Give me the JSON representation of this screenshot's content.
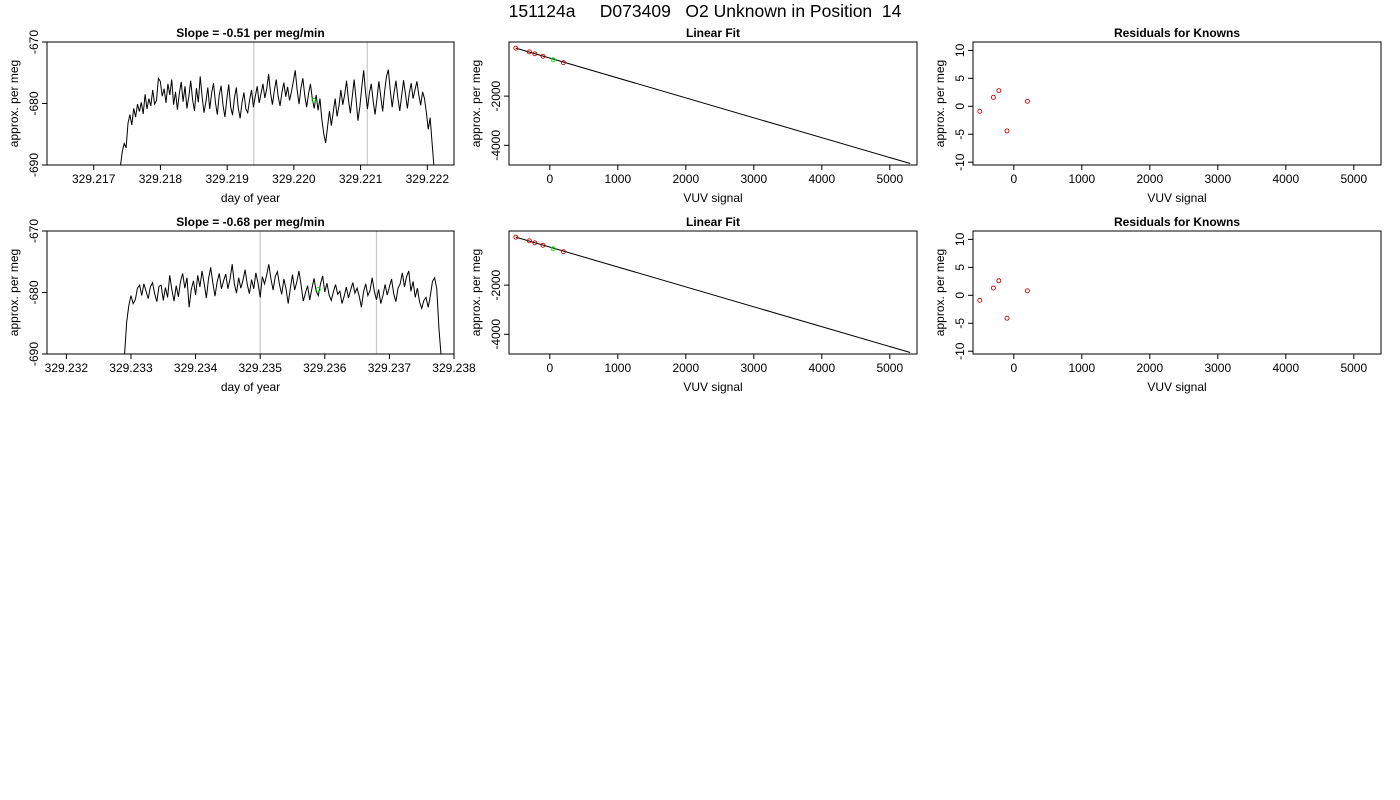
{
  "header": {
    "title": "151124a     D073409   O2 Unknown in Position  14"
  },
  "colors": {
    "trace": "#000000",
    "frame": "#000000",
    "marker_line": "#c8c8c8",
    "known_point": "#cc0000",
    "unknown_point": "#00ee00"
  },
  "chart_data": [
    {
      "type": "line",
      "title": "Slope =  -0.51  per meg/min",
      "xlabel": "day of year",
      "ylabel": "approx. per meg",
      "xlim": [
        329.2163,
        329.2224
      ],
      "ylim": [
        -690,
        -670
      ],
      "xticks": [
        "329.217",
        "329.218",
        "329.219",
        "329.220",
        "329.221",
        "329.222"
      ],
      "yticks": [
        "-690",
        "-680",
        "-670"
      ],
      "vlines": [
        329.2194,
        329.2211
      ],
      "green_point": {
        "x": 329.2203,
        "y": -679.5
      },
      "series": [
        {
          "values_x_start": 329.2174,
          "values_x_end": 329.2221,
          "y": [
            -690.2,
            -687.8,
            -686.5,
            -687.2,
            -683.2,
            -681.8,
            -683.5,
            -680.8,
            -682.2,
            -680.1,
            -681.3,
            -679.8,
            -681.7,
            -678.5,
            -680.9,
            -679.2,
            -680.4,
            -677.8,
            -680.1,
            -679.5,
            -675.9,
            -676.4,
            -678.8,
            -677.6,
            -679.9,
            -676.8,
            -678.6,
            -676.1,
            -680.2,
            -678.1,
            -681.0,
            -678.4,
            -676.5,
            -679.7,
            -677.2,
            -680.8,
            -678.9,
            -676.3,
            -679.4,
            -681.2,
            -677.5,
            -679.8,
            -675.6,
            -678.9,
            -681.5,
            -679.7,
            -677.4,
            -680.9,
            -678.3,
            -676.7,
            -679.8,
            -681.8,
            -678.6,
            -677.1,
            -680.3,
            -682.2,
            -679.3,
            -676.9,
            -680.5,
            -681.9,
            -679.1,
            -677.4,
            -680.7,
            -682.4,
            -679.8,
            -678.2,
            -680.9,
            -681.5,
            -679.4,
            -677.8,
            -680.6,
            -678.8,
            -677.2,
            -679.9,
            -678.4,
            -676.8,
            -679.1,
            -677.6,
            -675.2,
            -678.3,
            -680.2,
            -677.9,
            -676.1,
            -678.8,
            -680.4,
            -678.2,
            -676.6,
            -678.9,
            -677.3,
            -679.5,
            -678.1,
            -676.4,
            -674.6,
            -677.8,
            -680.1,
            -677.5,
            -675.9,
            -678.7,
            -680.6,
            -678.4,
            -676.8,
            -679.3,
            -680.8,
            -678.6,
            -681.1,
            -679.2,
            -682.6,
            -684.9,
            -686.4,
            -683.8,
            -681.2,
            -683.6,
            -681.4,
            -679.2,
            -682.1,
            -680.4,
            -677.8,
            -680.2,
            -678.6,
            -676.3,
            -679.4,
            -681.6,
            -678.9,
            -676.1,
            -679.3,
            -682.8,
            -680.5,
            -677.4,
            -674.6,
            -678.2,
            -680.9,
            -678.3,
            -676.8,
            -679.6,
            -681.8,
            -679.2,
            -676.4,
            -678.9,
            -681.3,
            -678.1,
            -675.6,
            -674.5,
            -677.9,
            -680.6,
            -678.2,
            -676.3,
            -679.1,
            -681.2,
            -678.7,
            -676.2,
            -678.5,
            -680.8,
            -678.3,
            -676.7,
            -679.2,
            -677.8,
            -676.4,
            -678.6,
            -680.3,
            -678.1,
            -679.2,
            -681.5,
            -684.2,
            -682.3,
            -686.4,
            -690.3
          ]
        }
      ]
    },
    {
      "type": "scatter",
      "title": "Linear Fit",
      "xlabel": "VUV signal",
      "ylabel": "approx. per meg",
      "xlim": [
        -600,
        5400
      ],
      "ylim": [
        -4800,
        200
      ],
      "xticks": [
        "0",
        "1000",
        "2000",
        "3000",
        "4000",
        "5000"
      ],
      "yticks": [
        "-4000",
        "-2000"
      ],
      "fit_line": {
        "x": [
          -500,
          5300
        ],
        "y": [
          -50,
          -4740
        ]
      },
      "known_points": [
        {
          "x": -500,
          "y": -50
        },
        {
          "x": -300,
          "y": -200
        },
        {
          "x": -220,
          "y": -280
        },
        {
          "x": -100,
          "y": -380
        },
        {
          "x": 200,
          "y": -640
        }
      ],
      "unknown_points": [
        {
          "x": 50,
          "y": -520
        }
      ]
    },
    {
      "type": "scatter",
      "title": "Residuals for Knowns",
      "xlabel": "VUV signal",
      "ylabel": "approx. per meg",
      "xlim": [
        -600,
        5400
      ],
      "ylim": [
        -10.5,
        11.5
      ],
      "xticks": [
        "0",
        "1000",
        "2000",
        "3000",
        "4000",
        "5000"
      ],
      "yticks": [
        "-10",
        "-5",
        "0",
        "5",
        "10"
      ],
      "known_points": [
        {
          "x": -500,
          "y": -0.9
        },
        {
          "x": -300,
          "y": 1.6
        },
        {
          "x": -220,
          "y": 2.8
        },
        {
          "x": -100,
          "y": -4.4
        },
        {
          "x": 200,
          "y": 0.9
        }
      ]
    },
    {
      "type": "line",
      "title": "Slope =  -0.68  per meg/min",
      "xlabel": "day of year",
      "ylabel": "approx. per meg",
      "xlim": [
        329.2317,
        329.238
      ],
      "ylim": [
        -690,
        -670
      ],
      "xticks": [
        "329.232",
        "329.233",
        "329.234",
        "329.235",
        "329.236",
        "329.237",
        "329.238"
      ],
      "yticks": [
        "-690",
        "-680",
        "-670"
      ],
      "vlines": [
        329.235,
        329.2368
      ],
      "green_point": {
        "x": 329.2359,
        "y": -679.5
      },
      "series": [
        {
          "values_x_start": 329.2329,
          "values_x_end": 329.2378,
          "y": [
            -690.2,
            -684.8,
            -682.1,
            -680.5,
            -681.8,
            -681.2,
            -679.3,
            -678.8,
            -680.5,
            -678.6,
            -679.8,
            -681.0,
            -679.1,
            -678.4,
            -680.2,
            -681.5,
            -679.0,
            -678.8,
            -681.3,
            -679.2,
            -680.8,
            -677.2,
            -679.6,
            -681.4,
            -678.9,
            -680.7,
            -678.2,
            -676.9,
            -679.3,
            -677.6,
            -682.4,
            -679.5,
            -678.1,
            -680.4,
            -677.2,
            -679.1,
            -676.5,
            -678.6,
            -680.9,
            -677.8,
            -675.9,
            -678.4,
            -680.6,
            -678.3,
            -676.9,
            -679.4,
            -678.1,
            -677.0,
            -679.4,
            -677.8,
            -675.4,
            -678.6,
            -680.1,
            -677.6,
            -679.3,
            -678.0,
            -676.3,
            -678.7,
            -680.2,
            -677.9,
            -679.4,
            -676.8,
            -678.5,
            -680.8,
            -677.4,
            -678.6,
            -677.2,
            -675.4,
            -677.8,
            -679.6,
            -677.4,
            -676.6,
            -678.8,
            -680.3,
            -677.8,
            -679.4,
            -681.8,
            -679.3,
            -677.1,
            -679.6,
            -678.3,
            -676.5,
            -678.8,
            -681.4,
            -680.1,
            -678.9,
            -681.2,
            -679.4,
            -677.7,
            -679.8,
            -680.5,
            -678.6,
            -677.3,
            -679.9,
            -678.5,
            -680.4,
            -681.3,
            -679.9,
            -678.7,
            -680.3,
            -679.8,
            -681.8,
            -680.6,
            -679.1,
            -680.9,
            -679.6,
            -678.4,
            -680.1,
            -679.3,
            -680.6,
            -682.4,
            -679.9,
            -678.6,
            -680.5,
            -679.7,
            -677.6,
            -679.8,
            -681.2,
            -679.5,
            -681.8,
            -680.5,
            -678.7,
            -680.4,
            -679.1,
            -677.8,
            -680.2,
            -681.5,
            -679.3,
            -678.6,
            -676.8,
            -679.1,
            -677.4,
            -676.5,
            -679.8,
            -678.2,
            -680.8,
            -679.3,
            -681.5,
            -682.6,
            -681.3,
            -680.8,
            -682.4,
            -680.6,
            -678.2,
            -677.6,
            -679.4,
            -685.8,
            -690.3
          ]
        }
      ]
    },
    {
      "type": "scatter",
      "title": "Linear Fit",
      "xlabel": "VUV signal",
      "ylabel": "approx. per meg",
      "xlim": [
        -600,
        5400
      ],
      "ylim": [
        -4800,
        200
      ],
      "xticks": [
        "0",
        "1000",
        "2000",
        "3000",
        "4000",
        "5000"
      ],
      "yticks": [
        "-4000",
        "-2000"
      ],
      "fit_line": {
        "x": [
          -500,
          5300
        ],
        "y": [
          -50,
          -4740
        ]
      },
      "known_points": [
        {
          "x": -500,
          "y": -50
        },
        {
          "x": -300,
          "y": -200
        },
        {
          "x": -220,
          "y": -280
        },
        {
          "x": -100,
          "y": -380
        },
        {
          "x": 200,
          "y": -640
        }
      ],
      "unknown_points": [
        {
          "x": 50,
          "y": -520
        }
      ]
    },
    {
      "type": "scatter",
      "title": "Residuals for Knowns",
      "xlabel": "VUV signal",
      "ylabel": "approx. per meg",
      "xlim": [
        -600,
        5400
      ],
      "ylim": [
        -10.5,
        11.5
      ],
      "xticks": [
        "0",
        "1000",
        "2000",
        "3000",
        "4000",
        "5000"
      ],
      "yticks": [
        "-10",
        "-5",
        "0",
        "5",
        "10"
      ],
      "known_points": [
        {
          "x": -500,
          "y": -0.9
        },
        {
          "x": -300,
          "y": 1.3
        },
        {
          "x": -220,
          "y": 2.6
        },
        {
          "x": -100,
          "y": -4.1
        },
        {
          "x": 200,
          "y": 0.8
        }
      ]
    }
  ]
}
